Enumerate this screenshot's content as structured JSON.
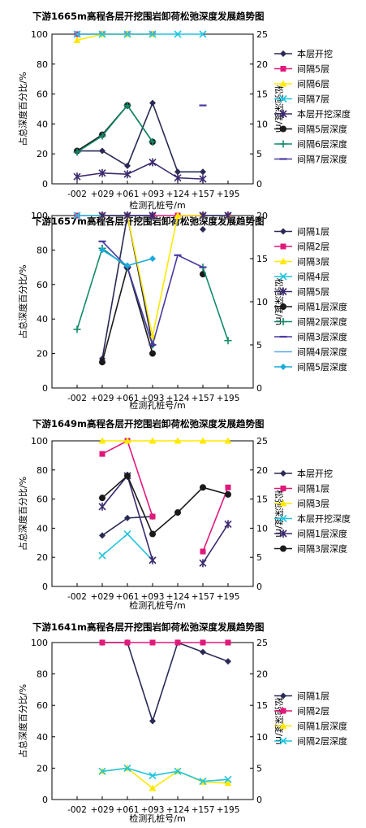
{
  "chart_data": [
    {
      "type": "line",
      "title": "下游1665m高程各层开挖围岩卸荷松弛深度发展趋势图",
      "xlabel": "检测孔桩号/m",
      "ylabel": "占总深度百分比/%",
      "y2label": "松弛深度/m",
      "categories": [
        "-002",
        "+029",
        "+061",
        "+093",
        "+124",
        "+157",
        "+195"
      ],
      "ylim": [
        0,
        100
      ],
      "y2lim": [
        0,
        25
      ],
      "yticks": [
        "0",
        "20",
        "40",
        "60",
        "80",
        "100"
      ],
      "y2ticks": [
        "0",
        "5",
        "10",
        "15",
        "20",
        "25"
      ],
      "series": [
        {
          "name": "本层开挖",
          "axis": "y",
          "color": "#2a2a55",
          "marker": "diamond",
          "values": [
            22,
            22,
            12,
            54,
            8,
            8,
            null
          ]
        },
        {
          "name": "间隔5层",
          "axis": "y",
          "color": "#e0197a",
          "marker": "square",
          "values": [
            100,
            100,
            100,
            100,
            null,
            null,
            null
          ]
        },
        {
          "name": "间隔6层",
          "axis": "y",
          "color": "#ffe800",
          "marker": "triangle",
          "values": [
            96,
            100,
            100,
            100,
            null,
            null,
            null
          ]
        },
        {
          "name": "间隔7层",
          "axis": "y",
          "color": "#22c4e0",
          "marker": "x",
          "values": [
            100,
            100,
            100,
            100,
            100,
            100,
            null
          ]
        },
        {
          "name": "本层开挖深度",
          "axis": "y2",
          "color": "#3c2a6e",
          "marker": "star",
          "values": [
            1.2,
            1.8,
            1.6,
            3.6,
            1.0,
            0.8,
            null
          ]
        },
        {
          "name": "间隔5层深度",
          "axis": "y2",
          "color": "#1a1a1a",
          "marker": "circle",
          "values": [
            5.5,
            8.2,
            13.1,
            7.0,
            null,
            null,
            null
          ]
        },
        {
          "name": "间隔6层深度",
          "axis": "y2",
          "color": "#128a6a",
          "marker": "plus",
          "values": [
            5.3,
            8.0,
            13.1,
            7.0,
            null,
            null,
            null
          ]
        },
        {
          "name": "间隔7层深度",
          "axis": "y2",
          "color": "#4a3aa0",
          "marker": "dash",
          "values": [
            null,
            null,
            null,
            null,
            null,
            13.1,
            null
          ]
        }
      ]
    },
    {
      "type": "line",
      "title": "下游1657m高程各层开挖围岩卸荷松弛深度发展趋势图",
      "xlabel": "检测孔桩号/m",
      "ylabel": "占总深度百分比/%",
      "y2label": "松弛深度/m",
      "categories": [
        "-002",
        "+029",
        "+061",
        "+093",
        "+124",
        "+157",
        "+195"
      ],
      "ylim": [
        0,
        100
      ],
      "y2lim": [
        0,
        20
      ],
      "yticks": [
        "0",
        "20",
        "40",
        "60",
        "80",
        "100"
      ],
      "y2ticks": [
        "0",
        "5",
        "10",
        "15",
        "20"
      ],
      "series": [
        {
          "name": "间隔1层",
          "axis": "y",
          "color": "#2a2a55",
          "marker": "diamond",
          "values": [
            null,
            17,
            100,
            25,
            null,
            92,
            null
          ]
        },
        {
          "name": "间隔2层",
          "axis": "y",
          "color": "#e0197a",
          "marker": "square",
          "values": [
            100,
            100,
            100,
            100,
            100,
            100,
            100
          ]
        },
        {
          "name": "间隔3层",
          "axis": "y",
          "color": "#ffe800",
          "marker": "triangle",
          "values": [
            null,
            100,
            100,
            30,
            100,
            100,
            100
          ]
        },
        {
          "name": "间隔4层",
          "axis": "y",
          "color": "#22c4e0",
          "marker": "x",
          "values": [
            100,
            100,
            100,
            100,
            null,
            100,
            100
          ]
        },
        {
          "name": "间隔5层",
          "axis": "y",
          "color": "#3c2a6e",
          "marker": "star",
          "values": [
            null,
            100,
            100,
            100,
            null,
            100,
            100
          ]
        },
        {
          "name": "间隔1层深度",
          "axis": "y2",
          "color": "#1a1a1a",
          "marker": "circle",
          "values": [
            null,
            3.0,
            14.0,
            4.0,
            null,
            13.2,
            null
          ]
        },
        {
          "name": "间隔2层深度",
          "axis": "y2",
          "color": "#128a6a",
          "marker": "plus",
          "values": [
            6.8,
            16.2,
            14.0,
            5.0,
            null,
            14.0,
            5.5
          ]
        },
        {
          "name": "间隔3层深度",
          "axis": "y2",
          "color": "#4a3aa0",
          "marker": "dash",
          "values": [
            null,
            17.0,
            14.0,
            5.0,
            15.4,
            14.0,
            null
          ]
        },
        {
          "name": "间隔4层深度",
          "axis": "y2",
          "color": "#5aa8e8",
          "marker": "none",
          "values": [
            null,
            16.0,
            14.2,
            null,
            null,
            null,
            null
          ]
        },
        {
          "name": "间隔5层深度",
          "axis": "y2",
          "color": "#1aaad8",
          "marker": "diamond",
          "values": [
            null,
            16.0,
            14.2,
            15.0,
            null,
            null,
            null
          ]
        }
      ]
    },
    {
      "type": "line",
      "title": "下游1649m高程各层开挖围岩卸荷松弛深度发展趋势图",
      "xlabel": "检测孔桩号/m",
      "ylabel": "占总深度百分比/%",
      "y2label": "松弛深度/m",
      "categories": [
        "-002",
        "+029",
        "+061",
        "+093",
        "+124",
        "+157",
        "+195"
      ],
      "ylim": [
        0,
        100
      ],
      "y2lim": [
        0,
        25
      ],
      "yticks": [
        "0",
        "20",
        "40",
        "60",
        "80",
        "100"
      ],
      "y2ticks": [
        "0",
        "5",
        "10",
        "15",
        "20",
        "25"
      ],
      "series": [
        {
          "name": "本层开挖",
          "axis": "y",
          "color": "#2a2a55",
          "marker": "diamond",
          "values": [
            null,
            35,
            47,
            48,
            null,
            null,
            null
          ]
        },
        {
          "name": "间隔1层",
          "axis": "y",
          "color": "#e0197a",
          "marker": "square",
          "values": [
            null,
            91,
            100,
            48,
            null,
            24,
            68
          ]
        },
        {
          "name": "间隔3层",
          "axis": "y",
          "color": "#ffe800",
          "marker": "triangle",
          "values": [
            null,
            100,
            100,
            100,
            100,
            100,
            100
          ]
        },
        {
          "name": "本层开挖深度",
          "axis": "y2",
          "color": "#22c4e0",
          "marker": "x",
          "values": [
            null,
            5.3,
            9.0,
            4.5,
            null,
            null,
            null
          ]
        },
        {
          "name": "间隔1层深度",
          "axis": "y2",
          "color": "#3c2a6e",
          "marker": "star",
          "values": [
            null,
            13.7,
            19.0,
            4.5,
            null,
            4.0,
            10.7
          ]
        },
        {
          "name": "间隔3层深度",
          "axis": "y2",
          "color": "#1a1a1a",
          "marker": "circle",
          "values": [
            null,
            15.2,
            19.0,
            9.0,
            12.7,
            17.0,
            15.8
          ]
        }
      ]
    },
    {
      "type": "line",
      "title": "下游1641m高程各层开挖围岩卸荷松弛深度发展趋势图",
      "xlabel": "检测孔桩号/m",
      "ylabel": "占总深度百分比/%",
      "y2label": "松弛深度/m",
      "categories": [
        "-002",
        "+029",
        "+061",
        "+093",
        "+124",
        "+157",
        "+195"
      ],
      "ylim": [
        0,
        100
      ],
      "y2lim": [
        0,
        25
      ],
      "yticks": [
        "0",
        "20",
        "40",
        "60",
        "80",
        "100"
      ],
      "y2ticks": [
        "0",
        "5",
        "10",
        "15",
        "20",
        "25"
      ],
      "series": [
        {
          "name": "间隔1层",
          "axis": "y",
          "color": "#2a2a55",
          "marker": "diamond",
          "values": [
            null,
            100,
            100,
            50,
            100,
            94,
            88
          ]
        },
        {
          "name": "间隔2层",
          "axis": "y",
          "color": "#e0197a",
          "marker": "square",
          "values": [
            null,
            100,
            100,
            100,
            100,
            100,
            100
          ]
        },
        {
          "name": "间隔1层深度",
          "axis": "y2",
          "color": "#ffe800",
          "marker": "triangle",
          "values": [
            null,
            4.5,
            5.0,
            1.8,
            4.5,
            2.8,
            2.6
          ]
        },
        {
          "name": "间隔2层深度",
          "axis": "y2",
          "color": "#22c4e0",
          "marker": "x",
          "values": [
            null,
            4.5,
            5.0,
            3.8,
            4.5,
            2.9,
            3.2
          ]
        }
      ]
    }
  ]
}
